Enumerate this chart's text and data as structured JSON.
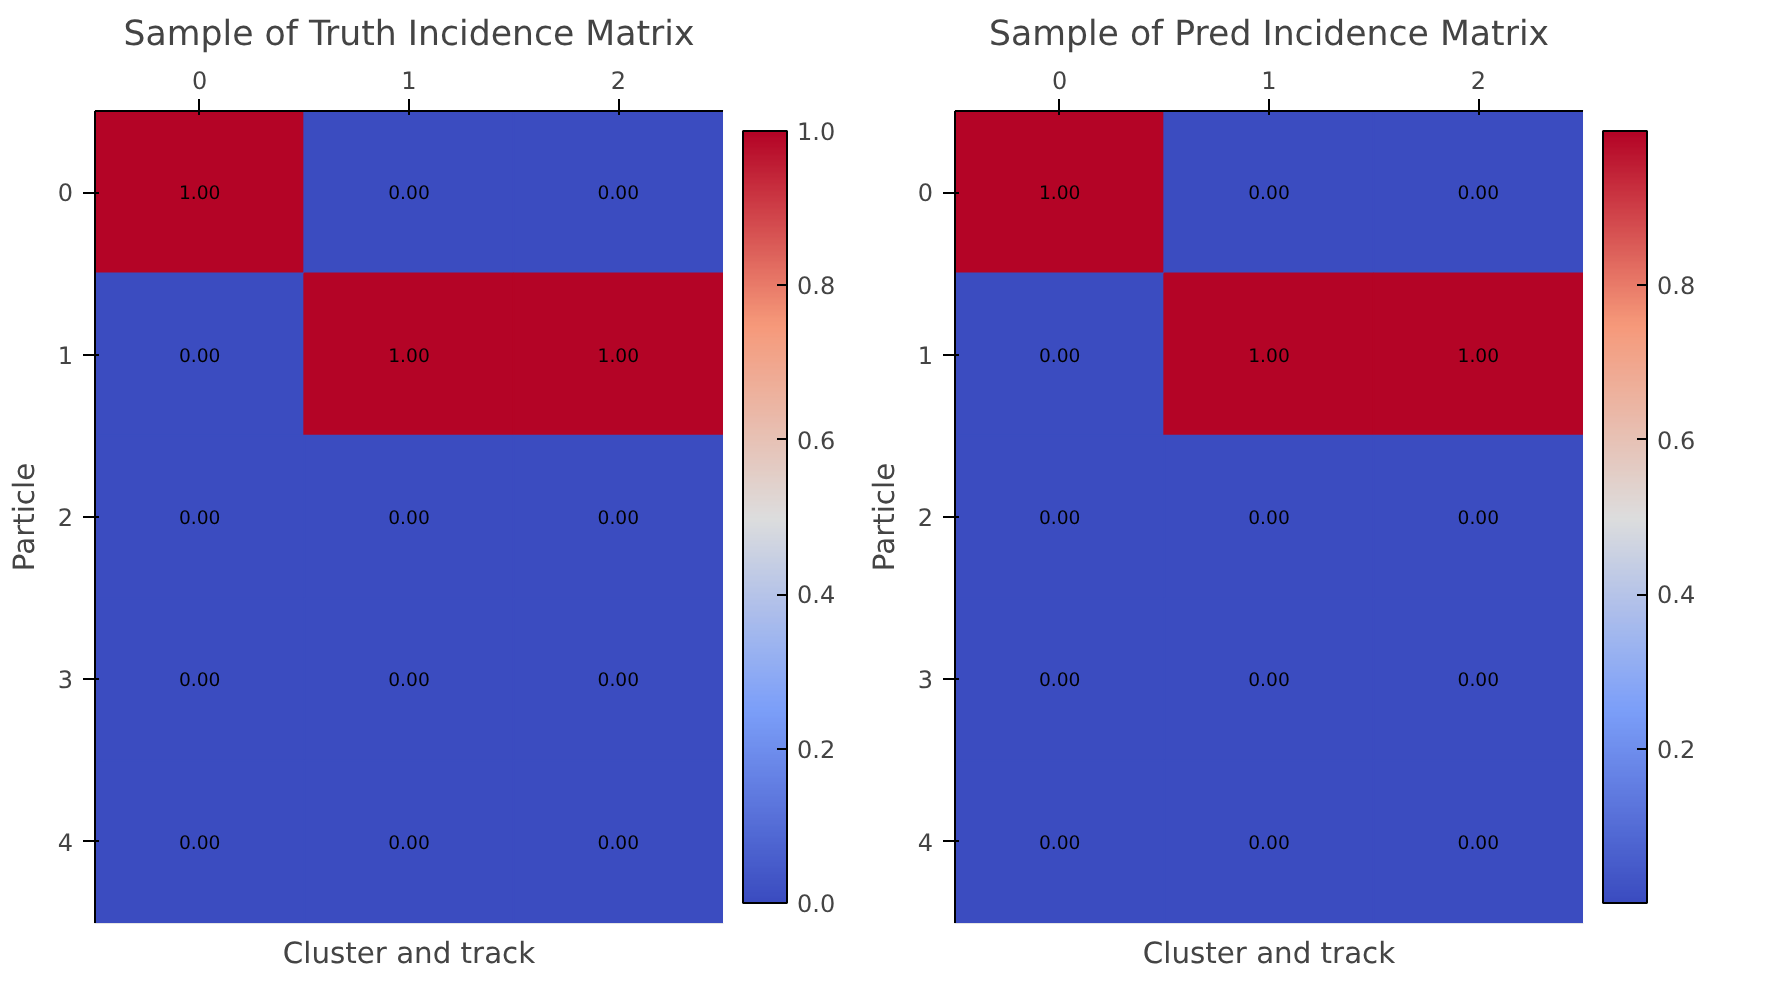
{
  "chart_data": [
    {
      "type": "heatmap",
      "title": "Sample of Truth Incidence Matrix",
      "xlabel": "Cluster and track",
      "ylabel": "Particle",
      "categories": [
        "0",
        "1",
        "2"
      ],
      "y_categories": [
        "0",
        "1",
        "2",
        "3",
        "4"
      ],
      "cells": [
        [
          1,
          0,
          0
        ],
        [
          0,
          1,
          1
        ],
        [
          0,
          0,
          0
        ],
        [
          0,
          0,
          0
        ],
        [
          0,
          0,
          0
        ]
      ],
      "cell_labels": [
        [
          "1.00",
          "0.00",
          "0.00"
        ],
        [
          "0.00",
          "1.00",
          "1.00"
        ],
        [
          "0.00",
          "0.00",
          "0.00"
        ],
        [
          "0.00",
          "0.00",
          "0.00"
        ],
        [
          "0.00",
          "0.00",
          "0.00"
        ]
      ],
      "clim": [
        0,
        1
      ],
      "cticks": [
        {
          "value": 0,
          "label": "0.0"
        },
        0.2,
        0.4,
        0.6,
        0.8,
        {
          "value": 1,
          "label": "1.0"
        }
      ]
    },
    {
      "type": "heatmap",
      "title": "Sample of Pred Incidence Matrix",
      "xlabel": "Cluster and track",
      "ylabel": "Particle",
      "categories": [
        "0",
        "1",
        "2"
      ],
      "y_categories": [
        "0",
        "1",
        "2",
        "3",
        "4"
      ],
      "cells": [
        [
          1,
          0,
          0
        ],
        [
          0,
          1,
          1
        ],
        [
          0,
          0,
          0
        ],
        [
          0,
          0,
          0
        ],
        [
          0,
          0,
          0
        ]
      ],
      "cell_labels": [
        [
          "1.00",
          "0.00",
          "0.00"
        ],
        [
          "0.00",
          "1.00",
          "1.00"
        ],
        [
          "0.00",
          "0.00",
          "0.00"
        ],
        [
          "0.00",
          "0.00",
          "0.00"
        ],
        [
          "0.00",
          "0.00",
          "0.00"
        ]
      ],
      "clim": [
        0,
        1
      ],
      "cticks": [
        0.2,
        0.4,
        0.6,
        0.8
      ]
    }
  ]
}
